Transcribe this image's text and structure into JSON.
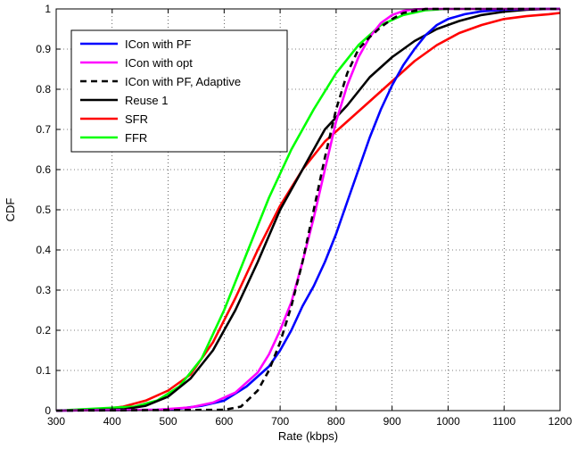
{
  "chart_data": {
    "type": "line",
    "title": "",
    "xlabel": "Rate (kbps)",
    "ylabel": "CDF",
    "xlim": [
      300,
      1200
    ],
    "ylim": [
      0,
      1
    ],
    "xticks": [
      300,
      400,
      500,
      600,
      700,
      800,
      900,
      1000,
      1100,
      1200
    ],
    "yticks": [
      0,
      0.1,
      0.2,
      0.3,
      0.4,
      0.5,
      0.6,
      0.7,
      0.8,
      0.9,
      1
    ],
    "grid": true,
    "legend_position": "top-left",
    "series": [
      {
        "name": "ICon with PF",
        "color": "#0000ff",
        "dash": "solid",
        "x": [
          300,
          480,
          520,
          560,
          600,
          640,
          680,
          700,
          720,
          740,
          760,
          780,
          800,
          820,
          840,
          860,
          880,
          900,
          920,
          940,
          960,
          980,
          1000,
          1030,
          1060,
          1100,
          1150,
          1200
        ],
        "y": [
          0,
          0.002,
          0.005,
          0.012,
          0.025,
          0.06,
          0.11,
          0.15,
          0.2,
          0.26,
          0.31,
          0.37,
          0.44,
          0.52,
          0.6,
          0.68,
          0.75,
          0.81,
          0.86,
          0.9,
          0.935,
          0.96,
          0.975,
          0.987,
          0.994,
          0.998,
          1,
          1
        ]
      },
      {
        "name": "ICon with opt",
        "color": "#ff00ff",
        "dash": "solid",
        "x": [
          300,
          480,
          540,
          580,
          620,
          660,
          680,
          700,
          720,
          740,
          760,
          780,
          800,
          820,
          840,
          860,
          880,
          900,
          920,
          940,
          960,
          1000,
          1200
        ],
        "y": [
          0,
          0.002,
          0.008,
          0.02,
          0.045,
          0.095,
          0.14,
          0.2,
          0.27,
          0.37,
          0.48,
          0.6,
          0.72,
          0.81,
          0.88,
          0.93,
          0.965,
          0.985,
          0.995,
          0.999,
          1,
          1,
          1
        ]
      },
      {
        "name": "ICon with PF, Adaptive",
        "color": "#000000",
        "dash": "dashed",
        "x": [
          300,
          600,
          630,
          660,
          680,
          700,
          720,
          740,
          760,
          780,
          800,
          820,
          840,
          860,
          880,
          900,
          920,
          960,
          1000,
          1200
        ],
        "y": [
          0,
          0.002,
          0.01,
          0.05,
          0.1,
          0.17,
          0.26,
          0.37,
          0.5,
          0.63,
          0.75,
          0.84,
          0.9,
          0.93,
          0.955,
          0.975,
          0.99,
          1,
          1,
          1
        ]
      },
      {
        "name": "Reuse 1",
        "color": "#000000",
        "dash": "solid",
        "x": [
          300,
          420,
          460,
          500,
          540,
          580,
          620,
          660,
          700,
          740,
          780,
          820,
          860,
          900,
          940,
          980,
          1020,
          1060,
          1100,
          1140,
          1180,
          1200
        ],
        "y": [
          0,
          0.003,
          0.012,
          0.035,
          0.08,
          0.15,
          0.25,
          0.37,
          0.5,
          0.6,
          0.7,
          0.76,
          0.83,
          0.88,
          0.92,
          0.95,
          0.97,
          0.985,
          0.993,
          0.998,
          1,
          1
        ]
      },
      {
        "name": "SFR",
        "color": "#ff0000",
        "dash": "solid",
        "x": [
          300,
          380,
          420,
          460,
          500,
          540,
          580,
          620,
          660,
          700,
          740,
          780,
          820,
          860,
          900,
          940,
          980,
          1020,
          1060,
          1100,
          1140,
          1180,
          1200
        ],
        "y": [
          0,
          0.003,
          0.01,
          0.025,
          0.05,
          0.09,
          0.17,
          0.28,
          0.4,
          0.51,
          0.6,
          0.67,
          0.72,
          0.77,
          0.82,
          0.87,
          0.91,
          0.94,
          0.96,
          0.975,
          0.982,
          0.987,
          0.99
        ]
      },
      {
        "name": "FFR",
        "color": "#00ff00",
        "dash": "solid",
        "x": [
          300,
          440,
          480,
          520,
          560,
          600,
          640,
          680,
          720,
          760,
          800,
          840,
          880,
          920,
          960,
          1000,
          1200
        ],
        "y": [
          0,
          0.01,
          0.025,
          0.06,
          0.13,
          0.25,
          0.39,
          0.53,
          0.65,
          0.75,
          0.84,
          0.91,
          0.96,
          0.985,
          0.997,
          1,
          1
        ]
      }
    ]
  }
}
